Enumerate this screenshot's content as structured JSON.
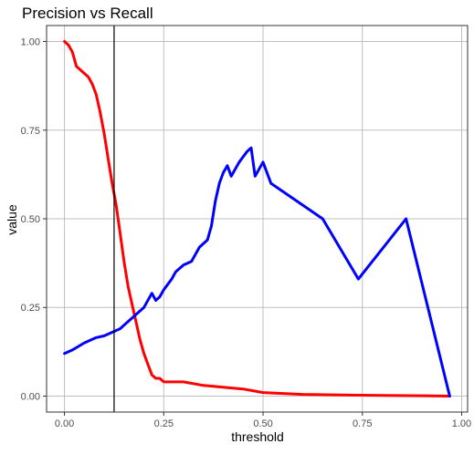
{
  "chart_data": {
    "type": "line",
    "title": "Precision vs Recall",
    "xlabel": "threshold",
    "ylabel": "value",
    "xlim": [
      -0.045,
      1.015
    ],
    "ylim": [
      -0.045,
      1.045
    ],
    "x_ticks": [
      "0.00",
      "0.25",
      "0.50",
      "0.75",
      "1.00"
    ],
    "y_ticks": [
      "0.00",
      "0.25",
      "0.50",
      "0.75",
      "1.00"
    ],
    "x_tick_values": [
      0,
      0.25,
      0.5,
      0.75,
      1
    ],
    "y_tick_values": [
      0,
      0.25,
      0.5,
      0.75,
      1
    ],
    "grid": true,
    "legend": "none",
    "vline": 0.125,
    "vline_color": "#000000",
    "grid_color": "#bfbfbf",
    "series": [
      {
        "color": "#ff0000",
        "x": [
          0.0,
          0.01,
          0.02,
          0.03,
          0.04,
          0.05,
          0.06,
          0.07,
          0.08,
          0.09,
          0.1,
          0.11,
          0.12,
          0.13,
          0.14,
          0.15,
          0.16,
          0.17,
          0.18,
          0.19,
          0.2,
          0.21,
          0.22,
          0.23,
          0.24,
          0.25,
          0.27,
          0.3,
          0.35,
          0.4,
          0.45,
          0.5,
          0.6,
          0.7,
          0.8,
          0.9,
          0.97
        ],
        "y": [
          1.0,
          0.99,
          0.97,
          0.93,
          0.92,
          0.91,
          0.9,
          0.88,
          0.85,
          0.8,
          0.74,
          0.67,
          0.6,
          0.54,
          0.46,
          0.38,
          0.31,
          0.26,
          0.21,
          0.16,
          0.12,
          0.09,
          0.06,
          0.05,
          0.05,
          0.04,
          0.04,
          0.04,
          0.03,
          0.025,
          0.02,
          0.01,
          0.005,
          0.003,
          0.002,
          0.001,
          0.0
        ]
      },
      {
        "color": "#0000ff",
        "x": [
          0.0,
          0.02,
          0.05,
          0.08,
          0.1,
          0.12,
          0.14,
          0.15,
          0.16,
          0.18,
          0.2,
          0.22,
          0.23,
          0.24,
          0.25,
          0.27,
          0.28,
          0.3,
          0.32,
          0.34,
          0.36,
          0.37,
          0.38,
          0.39,
          0.4,
          0.41,
          0.42,
          0.44,
          0.46,
          0.47,
          0.48,
          0.5,
          0.52,
          0.65,
          0.74,
          0.86,
          0.97
        ],
        "y": [
          0.12,
          0.13,
          0.15,
          0.165,
          0.17,
          0.18,
          0.19,
          0.2,
          0.21,
          0.23,
          0.25,
          0.29,
          0.27,
          0.28,
          0.3,
          0.33,
          0.35,
          0.37,
          0.38,
          0.42,
          0.44,
          0.48,
          0.55,
          0.6,
          0.63,
          0.65,
          0.62,
          0.66,
          0.69,
          0.7,
          0.62,
          0.66,
          0.6,
          0.5,
          0.33,
          0.5,
          0.0
        ]
      }
    ]
  }
}
